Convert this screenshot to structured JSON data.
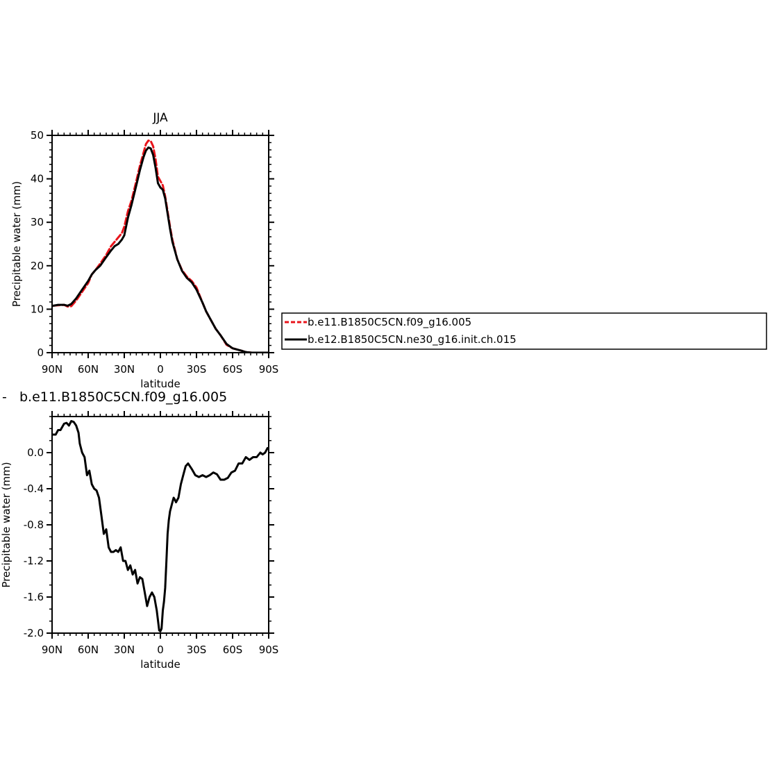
{
  "chart_data": [
    {
      "type": "line",
      "title": "JJA",
      "xlabel": "latitude",
      "ylabel": "Precipitable water (mm)",
      "xlim": [
        90,
        -90
      ],
      "ylim": [
        0,
        50
      ],
      "xticks": [
        90,
        60,
        30,
        0,
        -30,
        -60,
        -90
      ],
      "xtick_labels": [
        "90N",
        "60N",
        "30N",
        "0",
        "30S",
        "60S",
        "90S"
      ],
      "yticks": [
        0,
        10,
        20,
        30,
        40,
        50
      ],
      "ytick_labels": [
        "0",
        "10",
        "20",
        "30",
        "40",
        "50"
      ],
      "grid": false,
      "legend_position": "right, outside plot",
      "series": [
        {
          "name": "b.e11.B1850C5CN.f09_g16.005",
          "color": "#e8141b",
          "dash": "dashed",
          "x": [
            89,
            85,
            80,
            77,
            74,
            70,
            65,
            60,
            57,
            54,
            50,
            45,
            41,
            38,
            35,
            32,
            30,
            27,
            24,
            20,
            17,
            14,
            12,
            10,
            8,
            6,
            4,
            2,
            0,
            -2,
            -4,
            -6,
            -8,
            -10,
            -14,
            -18,
            -22,
            -26,
            -30,
            -35,
            -38,
            -42,
            -46,
            -50,
            -55,
            -60,
            -64,
            -68,
            -70,
            -72,
            -76,
            -80,
            -85,
            -89
          ],
          "y": [
            10.8,
            10.9,
            11,
            10.6,
            10.7,
            12,
            14,
            16,
            18,
            19,
            20.5,
            22.5,
            24.5,
            25.5,
            26.5,
            27.5,
            29,
            32.5,
            35,
            39.5,
            43,
            46,
            48,
            48.8,
            48.7,
            47.5,
            44.5,
            40.5,
            39.5,
            38.5,
            36,
            32.5,
            29,
            26,
            21.5,
            19,
            17.5,
            16.5,
            15,
            11.5,
            9.5,
            7.5,
            5.5,
            4,
            1.8,
            1,
            0.7,
            0.4,
            0.2,
            0.1,
            0,
            0,
            0,
            0
          ]
        },
        {
          "name": "b.e12.B1850C5CN.ne30_g16.init.ch.015",
          "color": "#000000",
          "dash": "solid",
          "x": [
            89,
            85,
            80,
            77,
            74,
            70,
            65,
            60,
            57,
            54,
            50,
            45,
            41,
            38,
            35,
            32,
            30,
            27,
            24,
            20,
            17,
            14,
            12,
            10,
            8,
            6,
            4,
            2,
            0,
            -2,
            -4,
            -6,
            -8,
            -10,
            -14,
            -18,
            -22,
            -26,
            -30,
            -35,
            -38,
            -42,
            -46,
            -50,
            -55,
            -60,
            -64,
            -68,
            -70,
            -72,
            -76,
            -80,
            -85,
            -89
          ],
          "y": [
            10.8,
            11,
            11,
            10.8,
            11.2,
            12.5,
            14.5,
            16.5,
            18,
            19,
            20,
            22,
            23.5,
            24.5,
            25,
            26,
            27,
            31,
            34,
            38.5,
            42,
            45,
            46.5,
            47.2,
            47,
            45.5,
            42.5,
            39,
            38,
            37.5,
            35.5,
            32,
            28.5,
            25.5,
            21.5,
            18.8,
            17.2,
            16.2,
            14.5,
            11.5,
            9.5,
            7.5,
            5.5,
            4,
            2,
            1,
            0.7,
            0.4,
            0.2,
            0.1,
            0,
            0,
            0,
            0
          ]
        }
      ]
    },
    {
      "type": "line",
      "title": "b.e11.B1850C5CN.f09_g16.005",
      "title_prefix": "-",
      "xlabel": "latitude",
      "ylabel": "Precipitable water (mm)",
      "xlim": [
        90,
        -90
      ],
      "ylim": [
        -2.0,
        0.4
      ],
      "xticks": [
        90,
        60,
        30,
        0,
        -30,
        -60,
        -90
      ],
      "xtick_labels": [
        "90N",
        "60N",
        "30N",
        "0",
        "30S",
        "60S",
        "90S"
      ],
      "yticks": [
        -2.0,
        -1.6,
        -1.2,
        -0.8,
        -0.4,
        0.0
      ],
      "ytick_labels": [
        "-2.0",
        "-1.6",
        "-1.2",
        "-0.8",
        "-0.4",
        "0.0"
      ],
      "grid": false,
      "series": [
        {
          "name": "",
          "color": "#000000",
          "dash": "solid",
          "x": [
            89,
            87,
            85,
            83,
            80,
            78,
            76,
            74,
            72,
            70,
            68,
            67,
            65,
            63,
            61,
            59,
            57,
            55,
            53,
            51,
            49,
            47,
            45,
            43,
            41,
            39,
            37,
            35,
            33,
            31,
            29,
            27,
            25,
            23,
            21,
            19,
            17,
            15,
            13,
            11,
            9,
            7,
            5,
            3,
            1,
            0,
            -1,
            -2,
            -3,
            -4,
            -5,
            -6,
            -7,
            -8,
            -9,
            -10,
            -11,
            -12,
            -13,
            -15,
            -17,
            -19,
            -21,
            -23,
            -26,
            -29,
            -32,
            -35,
            -38,
            -41,
            -44,
            -47,
            -50,
            -53,
            -56,
            -59,
            -62,
            -65,
            -68,
            -71,
            -74,
            -77,
            -80,
            -83,
            -85,
            -87,
            -89
          ],
          "y": [
            0.2,
            0.2,
            0.25,
            0.25,
            0.32,
            0.33,
            0.3,
            0.35,
            0.34,
            0.3,
            0.22,
            0.1,
            0,
            -0.05,
            -0.25,
            -0.2,
            -0.35,
            -0.4,
            -0.42,
            -0.5,
            -0.7,
            -0.9,
            -0.85,
            -1.05,
            -1.1,
            -1.1,
            -1.08,
            -1.1,
            -1.05,
            -1.2,
            -1.2,
            -1.3,
            -1.25,
            -1.35,
            -1.3,
            -1.45,
            -1.38,
            -1.4,
            -1.55,
            -1.7,
            -1.6,
            -1.55,
            -1.6,
            -1.75,
            -1.97,
            -1.98,
            -1.95,
            -1.75,
            -1.65,
            -1.5,
            -1.2,
            -0.9,
            -0.75,
            -0.65,
            -0.6,
            -0.55,
            -0.5,
            -0.52,
            -0.55,
            -0.5,
            -0.35,
            -0.25,
            -0.15,
            -0.12,
            -0.18,
            -0.25,
            -0.27,
            -0.25,
            -0.27,
            -0.25,
            -0.22,
            -0.24,
            -0.3,
            -0.3,
            -0.28,
            -0.22,
            -0.2,
            -0.12,
            -0.12,
            -0.05,
            -0.08,
            -0.05,
            -0.05,
            0,
            -0.02,
            0,
            0.05
          ]
        }
      ]
    }
  ],
  "colors": {
    "background": "#ffffff",
    "axes": "#000000",
    "red_series": "#e8141b",
    "black_series": "#000000"
  }
}
